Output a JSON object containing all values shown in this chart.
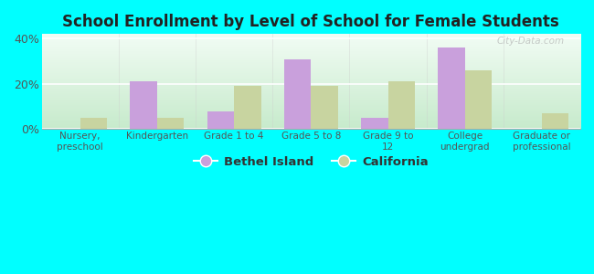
{
  "title": "School Enrollment by Level of School for Female Students",
  "categories": [
    "Nursery,\npreschool",
    "Kindergarten",
    "Grade 1 to 4",
    "Grade 5 to 8",
    "Grade 9 to\n12",
    "College\nundergrad",
    "Graduate or\nprofessional"
  ],
  "bethel_island": [
    0,
    21,
    8,
    31,
    5,
    36,
    0
  ],
  "california": [
    5,
    5,
    19,
    19,
    21,
    26,
    7
  ],
  "bethel_color": "#c9a0dc",
  "california_color": "#c8d4a0",
  "background_color": "#00ffff",
  "plot_bg_top": "#e8f5e9",
  "plot_bg_bottom": "#c8e6c9",
  "ylim": [
    0,
    42
  ],
  "yticks": [
    0,
    20,
    40
  ],
  "ytick_labels": [
    "0%",
    "20%",
    "40%"
  ],
  "bar_width": 0.35,
  "legend_labels": [
    "Bethel Island",
    "California"
  ],
  "watermark": "City-Data.com"
}
